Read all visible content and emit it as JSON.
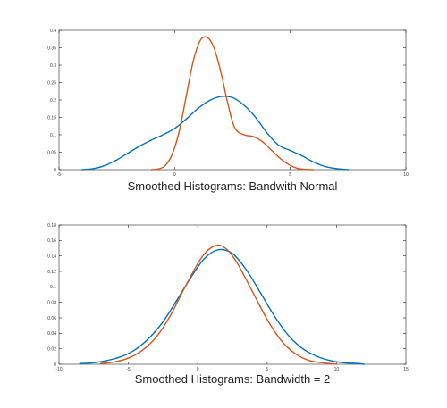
{
  "chart_data": [
    {
      "type": "line",
      "title": "Smoothed Histograms: Bandwith Normal",
      "xlim": [
        -5,
        10
      ],
      "ylim": [
        0,
        0.4
      ],
      "xticks": [
        -5,
        0,
        5,
        10
      ],
      "yticks": [
        0,
        0.05,
        0.1,
        0.15,
        0.2,
        0.25,
        0.3,
        0.35,
        0.4
      ],
      "xtick_labels": [
        "-5",
        "0",
        "5",
        "10"
      ],
      "ytick_labels": [
        "0",
        "0.05",
        "0.1",
        "0.15",
        "0.2",
        "0.25",
        "0.3",
        "0.35",
        "0.4"
      ],
      "grid": false,
      "series": [
        {
          "color": "#0072BD",
          "x": [
            -4,
            -3.5,
            -3,
            -2.5,
            -2,
            -1.5,
            -1,
            -0.5,
            0,
            0.5,
            1,
            1.5,
            2,
            2.5,
            3,
            3.5,
            4,
            4.5,
            5,
            5.5,
            6,
            6.5,
            7,
            7.5
          ],
          "y": [
            0,
            0.003,
            0.012,
            0.028,
            0.048,
            0.068,
            0.085,
            0.1,
            0.118,
            0.145,
            0.175,
            0.198,
            0.21,
            0.207,
            0.185,
            0.15,
            0.105,
            0.07,
            0.055,
            0.04,
            0.022,
            0.009,
            0.003,
            0
          ]
        },
        {
          "color": "#D95319",
          "x": [
            -1,
            -0.7,
            -0.4,
            -0.1,
            0.2,
            0.5,
            0.8,
            1.1,
            1.4,
            1.7,
            2,
            2.3,
            2.6,
            3,
            3.4,
            3.8,
            4.2,
            4.6,
            5,
            5.3,
            5.6,
            6
          ],
          "y": [
            0,
            0.002,
            0.012,
            0.045,
            0.11,
            0.21,
            0.31,
            0.37,
            0.38,
            0.35,
            0.28,
            0.19,
            0.12,
            0.1,
            0.095,
            0.08,
            0.055,
            0.03,
            0.012,
            0.004,
            0.001,
            0
          ]
        }
      ]
    },
    {
      "type": "line",
      "title": "Smoothed Histograms: Bandwidth = 2",
      "xlim": [
        -10,
        15
      ],
      "ylim": [
        0,
        0.18
      ],
      "xticks": [
        -10,
        -5,
        0,
        5,
        10,
        15
      ],
      "yticks": [
        0,
        0.02,
        0.04,
        0.06,
        0.08,
        0.1,
        0.12,
        0.14,
        0.16,
        0.18
      ],
      "xtick_labels": [
        "-10",
        "-5",
        "0",
        "5",
        "10",
        "15"
      ],
      "ytick_labels": [
        "0",
        "0.02",
        "0.04",
        "0.06",
        "0.08",
        "0.1",
        "0.12",
        "0.14",
        "0.16",
        "0.18"
      ],
      "grid": false,
      "series": [
        {
          "color": "#0072BD",
          "x": [
            -8.5,
            -7.5,
            -6.5,
            -5.5,
            -4.5,
            -3.5,
            -2.5,
            -1.5,
            -0.5,
            0.5,
            1.5,
            2.5,
            3.5,
            4.5,
            5.5,
            6.5,
            7.5,
            8.5,
            9.5,
            10.5,
            11.5,
            12
          ],
          "y": [
            0.001,
            0.002,
            0.005,
            0.01,
            0.019,
            0.034,
            0.055,
            0.083,
            0.112,
            0.137,
            0.148,
            0.143,
            0.122,
            0.093,
            0.063,
            0.038,
            0.021,
            0.011,
            0.005,
            0.002,
            0.001,
            0
          ]
        },
        {
          "color": "#D95319",
          "x": [
            -7,
            -6,
            -5,
            -4,
            -3,
            -2,
            -1,
            0,
            0.5,
            1,
            1.5,
            2,
            2.5,
            3,
            4,
            5,
            6,
            7,
            8,
            9,
            10
          ],
          "y": [
            0.001,
            0.003,
            0.008,
            0.018,
            0.035,
            0.062,
            0.097,
            0.13,
            0.143,
            0.151,
            0.154,
            0.15,
            0.14,
            0.126,
            0.092,
            0.058,
            0.031,
            0.014,
            0.005,
            0.002,
            0
          ]
        }
      ]
    }
  ]
}
